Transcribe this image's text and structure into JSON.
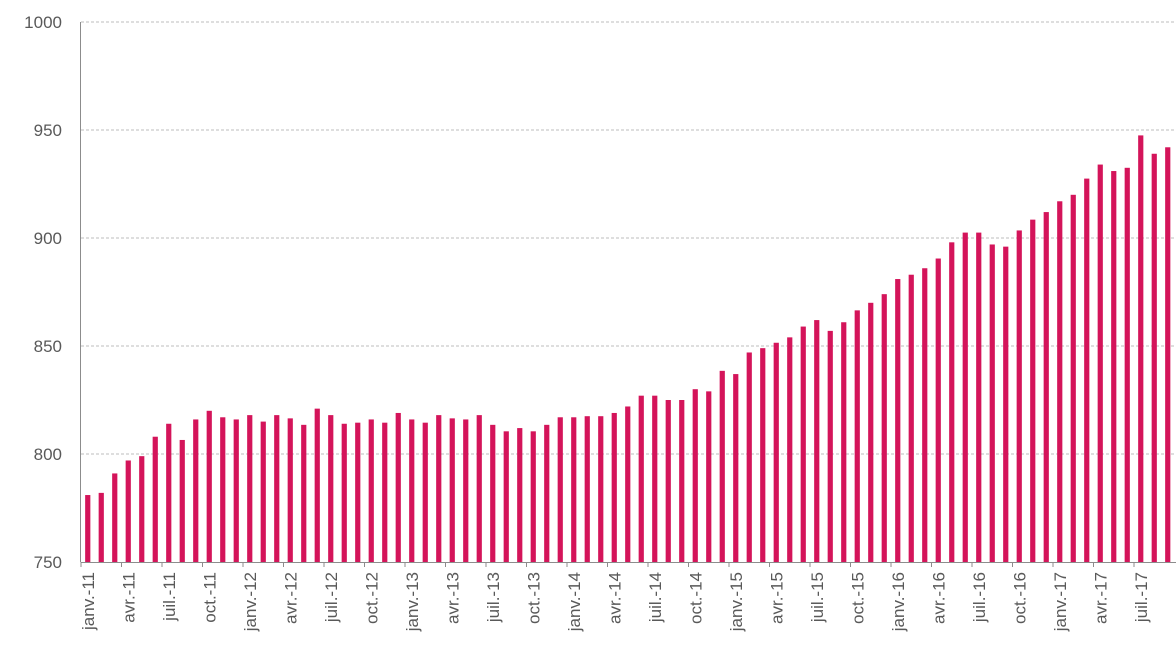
{
  "chart_data": {
    "type": "bar",
    "color": "#d4145a",
    "grid": true,
    "ylim": [
      750,
      1000
    ],
    "yticks": [
      750,
      800,
      850,
      900,
      950,
      1000
    ],
    "categories": [
      "janv.-11",
      null,
      null,
      "avr.-11",
      null,
      null,
      "juil.-11",
      null,
      null,
      "oct.-11",
      null,
      null,
      "janv.-12",
      null,
      null,
      "avr.-12",
      null,
      null,
      "juil.-12",
      null,
      null,
      "oct.-12",
      null,
      null,
      "janv.-13",
      null,
      null,
      "avr.-13",
      null,
      null,
      "juil.-13",
      null,
      null,
      "oct.-13",
      null,
      null,
      "janv.-14",
      null,
      null,
      "avr.-14",
      null,
      null,
      "juil.-14",
      null,
      null,
      "oct.-14",
      null,
      null,
      "janv.-15",
      null,
      null,
      "avr.-15",
      null,
      null,
      "juil.-15",
      null,
      null,
      "oct.-15",
      null,
      null,
      "janv.-16",
      null,
      null,
      "avr.-16",
      null,
      null,
      "juil.-16",
      null,
      null,
      "oct.-16",
      null,
      null,
      "janv.-17",
      null,
      null,
      "avr.-17",
      null,
      null,
      "juil.-17",
      null,
      null
    ],
    "values": [
      781,
      782,
      791,
      797,
      799,
      808,
      814,
      806.5,
      816,
      820,
      817,
      816,
      818,
      815,
      818,
      816.5,
      813.5,
      821,
      818,
      814,
      814.5,
      816,
      814.5,
      819,
      816,
      814.5,
      818,
      816.5,
      816,
      818,
      813.5,
      810.5,
      812,
      810.5,
      813.5,
      817,
      817,
      817.5,
      817.5,
      819,
      822,
      827,
      827,
      825,
      825,
      830,
      829,
      838.5,
      837,
      847,
      849,
      851.5,
      854,
      859,
      862,
      857,
      861,
      866.5,
      870,
      874,
      881,
      883,
      886,
      890.5,
      898,
      902.5,
      902.5,
      897,
      896,
      903.5,
      908.5,
      912,
      917,
      920,
      927.5,
      934,
      931,
      932.5,
      947.5,
      939,
      942
    ]
  }
}
